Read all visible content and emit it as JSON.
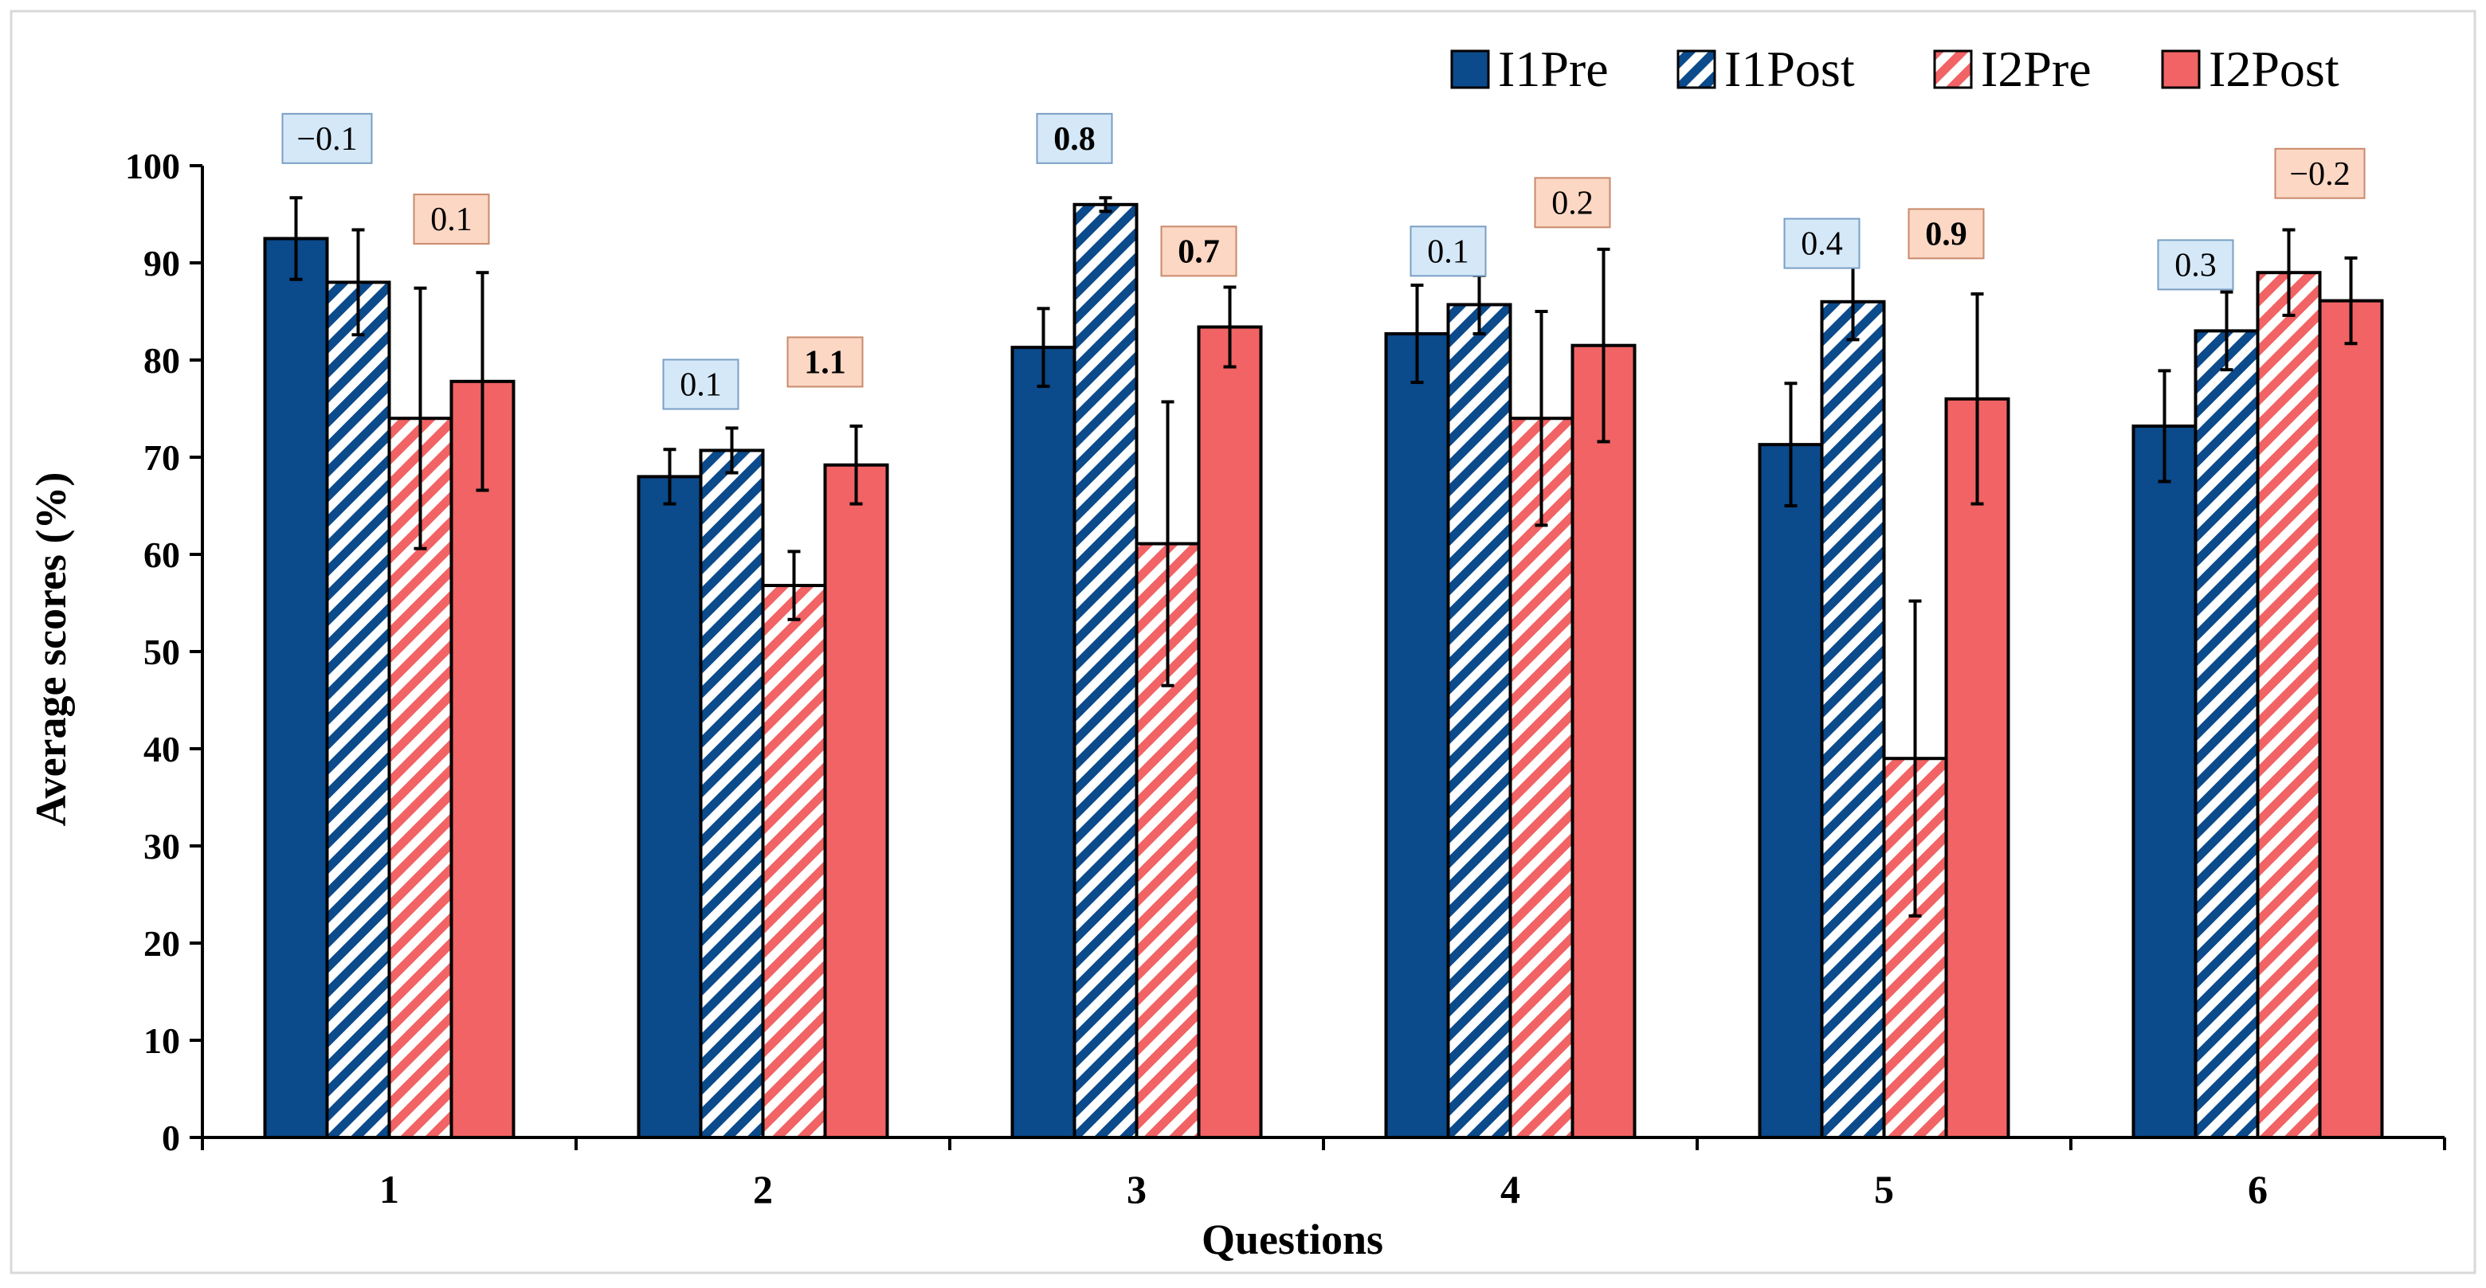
{
  "chart_data": {
    "type": "bar",
    "title": "",
    "xlabel": "Questions",
    "ylabel": "Average scores (%)",
    "ylim": [
      0,
      100
    ],
    "yticks": [
      0,
      10,
      20,
      30,
      40,
      50,
      60,
      70,
      80,
      90,
      100
    ],
    "categories": [
      "1",
      "2",
      "3",
      "4",
      "5",
      "6"
    ],
    "legend_position": "top-right",
    "grid": false,
    "series": [
      {
        "name": "I1Pre",
        "color": "#0b4a8b",
        "pattern": "solid",
        "values": [
          92.5,
          68,
          81.3,
          82.7,
          71.3,
          73.2
        ],
        "errors": [
          4.2,
          2.8,
          4.0,
          5.0,
          6.3,
          5.7
        ]
      },
      {
        "name": "I1Post",
        "color": "#0b4a8b",
        "pattern": "hatched",
        "values": [
          88,
          70.7,
          96,
          85.7,
          86,
          83
        ],
        "errors": [
          5.4,
          2.3,
          0.7,
          3.0,
          3.9,
          4.0
        ]
      },
      {
        "name": "I2Pre",
        "color": "#f16364",
        "pattern": "hatched",
        "values": [
          74,
          56.8,
          61.1,
          74,
          39,
          89
        ],
        "errors": [
          13.4,
          3.5,
          14.6,
          11.0,
          16.2,
          4.4
        ]
      },
      {
        "name": "I2Post",
        "color": "#f16364",
        "pattern": "solid",
        "values": [
          77.8,
          69.2,
          83.4,
          81.5,
          76,
          86.1
        ],
        "errors": [
          11.2,
          4.0,
          4.1,
          9.9,
          10.8,
          4.4
        ]
      }
    ],
    "annotations": [
      {
        "text": "−0.1",
        "group": "I1",
        "category": "1",
        "y": 102.8,
        "bold": false
      },
      {
        "text": "0.1",
        "group": "I2",
        "category": "1",
        "y": 94.5,
        "bold": false
      },
      {
        "text": "0.1",
        "group": "I1",
        "category": "2",
        "y": 77.5,
        "bold": false
      },
      {
        "text": "1.1",
        "group": "I2",
        "category": "2",
        "y": 79.8,
        "bold": true
      },
      {
        "text": "0.8",
        "group": "I1",
        "category": "3",
        "y": 102.8,
        "bold": true
      },
      {
        "text": "0.7",
        "group": "I2",
        "category": "3",
        "y": 91.2,
        "bold": true
      },
      {
        "text": "0.1",
        "group": "I1",
        "category": "4",
        "y": 91.2,
        "bold": false
      },
      {
        "text": "0.2",
        "group": "I2",
        "category": "4",
        "y": 96.2,
        "bold": false
      },
      {
        "text": "0.4",
        "group": "I1",
        "category": "5",
        "y": 92.0,
        "bold": false
      },
      {
        "text": "0.9",
        "group": "I2",
        "category": "5",
        "y": 93.0,
        "bold": true
      },
      {
        "text": "0.3",
        "group": "I1",
        "category": "6",
        "y": 89.8,
        "bold": false
      },
      {
        "text": "−0.2",
        "group": "I2",
        "category": "6",
        "y": 99.2,
        "bold": false
      }
    ],
    "annotation_colors": {
      "I1": {
        "fill": "#d5e8f7",
        "stroke": "#7a9fc4"
      },
      "I2": {
        "fill": "#fbd7c4",
        "stroke": "#c98a6b"
      }
    }
  }
}
